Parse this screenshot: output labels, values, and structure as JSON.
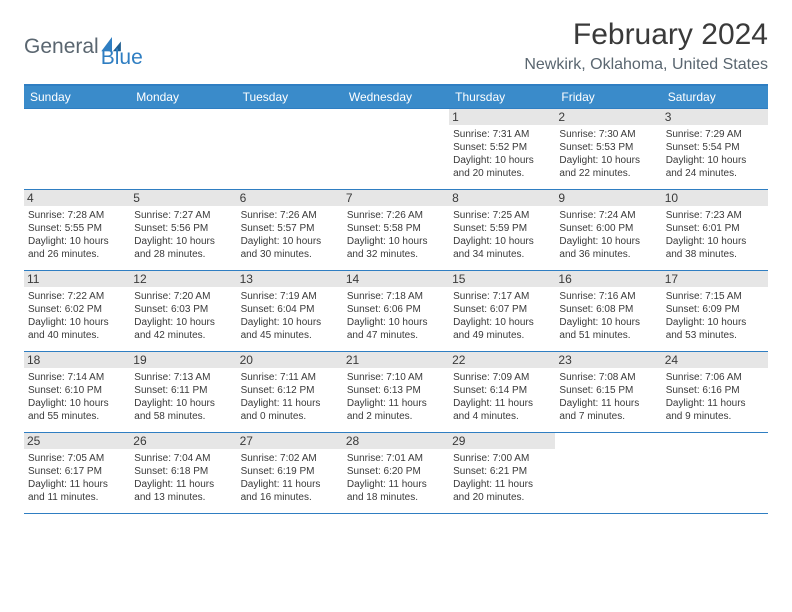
{
  "logo": {
    "part1": "General",
    "part2": "Blue"
  },
  "title": "February 2024",
  "location": "Newkirk, Oklahoma, United States",
  "colors": {
    "header_bg": "#3a8bca",
    "border": "#2f7ec2",
    "daynum_bg": "#e6e6e6",
    "text": "#3a3a3a",
    "logo_blue": "#2f7ec2",
    "logo_gray": "#5a6670"
  },
  "day_headers": [
    "Sunday",
    "Monday",
    "Tuesday",
    "Wednesday",
    "Thursday",
    "Friday",
    "Saturday"
  ],
  "weeks": [
    [
      null,
      null,
      null,
      null,
      {
        "n": "1",
        "sr": "7:31 AM",
        "ss": "5:52 PM",
        "dl": "10 hours and 20 minutes."
      },
      {
        "n": "2",
        "sr": "7:30 AM",
        "ss": "5:53 PM",
        "dl": "10 hours and 22 minutes."
      },
      {
        "n": "3",
        "sr": "7:29 AM",
        "ss": "5:54 PM",
        "dl": "10 hours and 24 minutes."
      }
    ],
    [
      {
        "n": "4",
        "sr": "7:28 AM",
        "ss": "5:55 PM",
        "dl": "10 hours and 26 minutes."
      },
      {
        "n": "5",
        "sr": "7:27 AM",
        "ss": "5:56 PM",
        "dl": "10 hours and 28 minutes."
      },
      {
        "n": "6",
        "sr": "7:26 AM",
        "ss": "5:57 PM",
        "dl": "10 hours and 30 minutes."
      },
      {
        "n": "7",
        "sr": "7:26 AM",
        "ss": "5:58 PM",
        "dl": "10 hours and 32 minutes."
      },
      {
        "n": "8",
        "sr": "7:25 AM",
        "ss": "5:59 PM",
        "dl": "10 hours and 34 minutes."
      },
      {
        "n": "9",
        "sr": "7:24 AM",
        "ss": "6:00 PM",
        "dl": "10 hours and 36 minutes."
      },
      {
        "n": "10",
        "sr": "7:23 AM",
        "ss": "6:01 PM",
        "dl": "10 hours and 38 minutes."
      }
    ],
    [
      {
        "n": "11",
        "sr": "7:22 AM",
        "ss": "6:02 PM",
        "dl": "10 hours and 40 minutes."
      },
      {
        "n": "12",
        "sr": "7:20 AM",
        "ss": "6:03 PM",
        "dl": "10 hours and 42 minutes."
      },
      {
        "n": "13",
        "sr": "7:19 AM",
        "ss": "6:04 PM",
        "dl": "10 hours and 45 minutes."
      },
      {
        "n": "14",
        "sr": "7:18 AM",
        "ss": "6:06 PM",
        "dl": "10 hours and 47 minutes."
      },
      {
        "n": "15",
        "sr": "7:17 AM",
        "ss": "6:07 PM",
        "dl": "10 hours and 49 minutes."
      },
      {
        "n": "16",
        "sr": "7:16 AM",
        "ss": "6:08 PM",
        "dl": "10 hours and 51 minutes."
      },
      {
        "n": "17",
        "sr": "7:15 AM",
        "ss": "6:09 PM",
        "dl": "10 hours and 53 minutes."
      }
    ],
    [
      {
        "n": "18",
        "sr": "7:14 AM",
        "ss": "6:10 PM",
        "dl": "10 hours and 55 minutes."
      },
      {
        "n": "19",
        "sr": "7:13 AM",
        "ss": "6:11 PM",
        "dl": "10 hours and 58 minutes."
      },
      {
        "n": "20",
        "sr": "7:11 AM",
        "ss": "6:12 PM",
        "dl": "11 hours and 0 minutes."
      },
      {
        "n": "21",
        "sr": "7:10 AM",
        "ss": "6:13 PM",
        "dl": "11 hours and 2 minutes."
      },
      {
        "n": "22",
        "sr": "7:09 AM",
        "ss": "6:14 PM",
        "dl": "11 hours and 4 minutes."
      },
      {
        "n": "23",
        "sr": "7:08 AM",
        "ss": "6:15 PM",
        "dl": "11 hours and 7 minutes."
      },
      {
        "n": "24",
        "sr": "7:06 AM",
        "ss": "6:16 PM",
        "dl": "11 hours and 9 minutes."
      }
    ],
    [
      {
        "n": "25",
        "sr": "7:05 AM",
        "ss": "6:17 PM",
        "dl": "11 hours and 11 minutes."
      },
      {
        "n": "26",
        "sr": "7:04 AM",
        "ss": "6:18 PM",
        "dl": "11 hours and 13 minutes."
      },
      {
        "n": "27",
        "sr": "7:02 AM",
        "ss": "6:19 PM",
        "dl": "11 hours and 16 minutes."
      },
      {
        "n": "28",
        "sr": "7:01 AM",
        "ss": "6:20 PM",
        "dl": "11 hours and 18 minutes."
      },
      {
        "n": "29",
        "sr": "7:00 AM",
        "ss": "6:21 PM",
        "dl": "11 hours and 20 minutes."
      },
      null,
      null
    ]
  ],
  "labels": {
    "sunrise": "Sunrise:",
    "sunset": "Sunset:",
    "daylight": "Daylight:"
  }
}
